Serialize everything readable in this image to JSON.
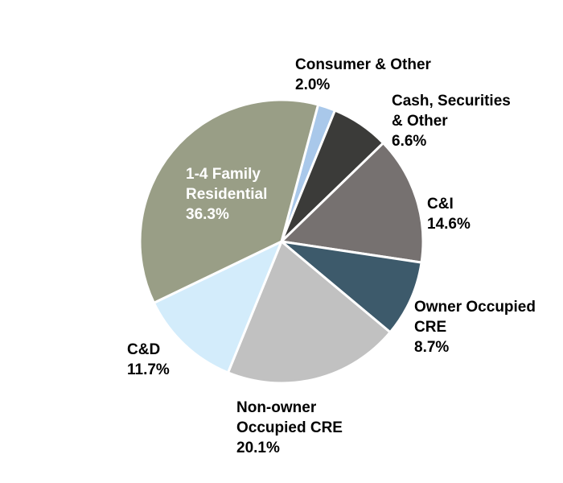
{
  "chart_data": {
    "type": "pie",
    "title": "",
    "slices": [
      {
        "name": "Consumer & Other",
        "lines": [
          "Consumer & Other"
        ],
        "value": 2.0,
        "value_label": "2.0%",
        "color": "#a9c8ea"
      },
      {
        "name": "Cash, Securities & Other",
        "lines": [
          "Cash, Securities",
          "& Other"
        ],
        "value": 6.6,
        "value_label": "6.6%",
        "color": "#3b3b39"
      },
      {
        "name": "C&I",
        "lines": [
          "C&I"
        ],
        "value": 14.6,
        "value_label": "14.6%",
        "color": "#767170"
      },
      {
        "name": "Owner Occupied CRE",
        "lines": [
          "Owner Occupied",
          "CRE"
        ],
        "value": 8.7,
        "value_label": "8.7%",
        "color": "#3d5a6b"
      },
      {
        "name": "Non-owner Occupied CRE",
        "lines": [
          "Non-owner",
          "Occupied CRE"
        ],
        "value": 20.1,
        "value_label": "20.1%",
        "color": "#c1c1c1"
      },
      {
        "name": "C&D",
        "lines": [
          "C&D"
        ],
        "value": 11.7,
        "value_label": "11.7%",
        "color": "#d3ecfb"
      },
      {
        "name": "1-4 Family Residential",
        "lines": [
          "1-4 Family",
          "Residential"
        ],
        "value": 36.3,
        "value_label": "36.3%",
        "color": "#999e86",
        "label_inside": true,
        "label_color": "#ffffff"
      }
    ]
  }
}
